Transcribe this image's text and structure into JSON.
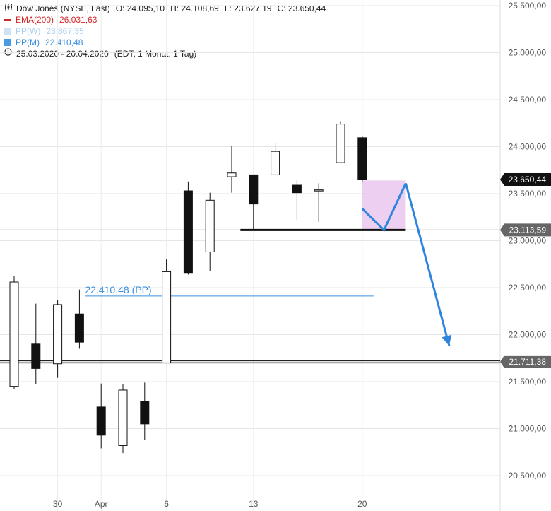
{
  "legend": {
    "title": "Dow Jones (NYSE, Last)",
    "open": "O: 24.095,10",
    "high": "H: 24.108,69",
    "low": "L: 23.627,19",
    "close": "C: 23.650,44",
    "ema_label": "EMA(200)",
    "ema_value": "26.031,63",
    "ppw_label": "PP(W)",
    "ppw_value": "23.867,35",
    "ppm_label": "PP(M)",
    "ppm_value": "22.410,48",
    "range": "25.03.2020 - 20.04.2020",
    "range_detail": "(EDT, 1 Monat, 1 Tag)",
    "colors": {
      "ema": "#d62728",
      "ppw": "#a9cff0",
      "ppm": "#3b8fe0"
    }
  },
  "chart_data": {
    "type": "candlestick",
    "y_range": [
      20300,
      25550
    ],
    "y_ticks": [
      20500,
      21000,
      21500,
      22000,
      22500,
      23000,
      23500,
      24000,
      24500,
      25000,
      25500
    ],
    "y_tick_labels": [
      "20.500,00",
      "21.000,00",
      "21.500,00",
      "22.000,00",
      "22.500,00",
      "23.000,00",
      "23.500,00",
      "24.000,00",
      "24.500,00",
      "25.000,00",
      "25.500,00"
    ],
    "x_ticks": [
      {
        "index": 2,
        "label": "30"
      },
      {
        "index": 4,
        "label": "Apr"
      },
      {
        "index": 7,
        "label": "6"
      },
      {
        "index": 11,
        "label": "13"
      },
      {
        "index": 16,
        "label": "20"
      }
    ],
    "candles": [
      {
        "date": "25.03.2020",
        "o": 21450,
        "h": 22620,
        "l": 21420,
        "c": 22560
      },
      {
        "date": "26.03.2020",
        "o": 21900,
        "h": 22330,
        "l": 21470,
        "c": 21640
      },
      {
        "date": "27.03.2020",
        "o": 21690,
        "h": 22370,
        "l": 21540,
        "c": 22320
      },
      {
        "date": "30.03.2020",
        "o": 22220,
        "h": 22480,
        "l": 21850,
        "c": 21920
      },
      {
        "date": "31.03.2020",
        "o": 21230,
        "h": 21480,
        "l": 20790,
        "c": 20930
      },
      {
        "date": "01.04.2020",
        "o": 20820,
        "h": 21470,
        "l": 20740,
        "c": 21410
      },
      {
        "date": "02.04.2020",
        "o": 21290,
        "h": 21490,
        "l": 20880,
        "c": 21050
      },
      {
        "date": "03.04.2020",
        "o": 21700,
        "h": 22800,
        "l": 21700,
        "c": 22670
      },
      {
        "date": "06.04.2020",
        "o": 23530,
        "h": 23630,
        "l": 22640,
        "c": 22660
      },
      {
        "date": "07.04.2020",
        "o": 22880,
        "h": 23510,
        "l": 22680,
        "c": 23430
      },
      {
        "date": "08.04.2020",
        "o": 23680,
        "h": 24010,
        "l": 23510,
        "c": 23720
      },
      {
        "date": "09.04.2020",
        "o": 23700,
        "h": 23700,
        "l": 23110,
        "c": 23390
      },
      {
        "date": "13.04.2020",
        "o": 23700,
        "h": 24040,
        "l": 23700,
        "c": 23950
      },
      {
        "date": "14.04.2020",
        "o": 23590,
        "h": 23650,
        "l": 23220,
        "c": 23510
      },
      {
        "date": "15.04.2020",
        "o": 23540,
        "h": 23610,
        "l": 23200,
        "c": 23540
      },
      {
        "date": "16.04.2020",
        "o": 23830,
        "h": 24270,
        "l": 23830,
        "c": 24240
      },
      {
        "date": "20.04.2020",
        "o": 24095.1,
        "h": 24108.69,
        "l": 23627.19,
        "c": 23650.44
      }
    ],
    "last_price": {
      "value": 23650.44,
      "label": "23.650,44"
    },
    "support_line": {
      "value": 23113.59,
      "label": "23.113,59"
    },
    "support_line_2": {
      "value": 21711.38,
      "label": "21.711,38"
    },
    "pp_line": {
      "value": 22410.48,
      "label": "22.410,48 (PP)",
      "from_index": 3,
      "to_index": 16
    },
    "box_zone": {
      "from_index": 16,
      "to_index": 18,
      "low": 23113.59,
      "high": 23640
    },
    "projection_path": [
      {
        "i": 16,
        "v": 23340
      },
      {
        "i": 17,
        "v": 23113.59
      },
      {
        "i": 18,
        "v": 23610
      },
      {
        "i": 20,
        "v": 21880
      }
    ],
    "grid": true
  }
}
